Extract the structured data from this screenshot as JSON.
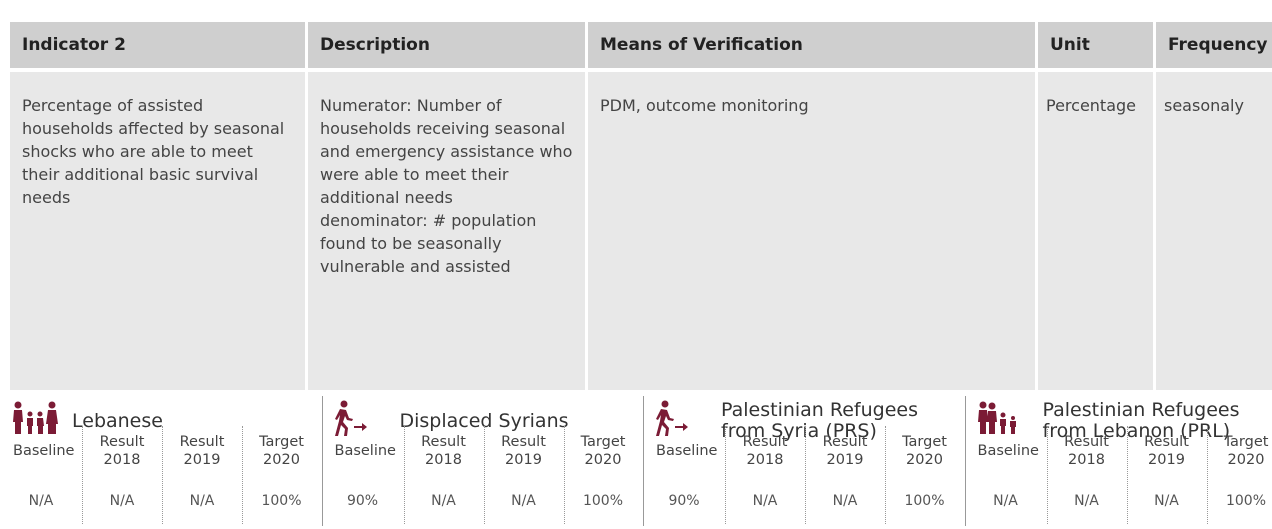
{
  "header": {
    "columns": [
      "Indicator 2",
      "Description",
      "Means of Verification",
      "Unit",
      "Frequency"
    ]
  },
  "row": {
    "indicator": "Percentage of assisted households affected by seasonal shocks who are able to meet their additional basic survival needs",
    "description": [
      "Numerator: Number of households receiving seasonal and emergency assistance who were able to meet their additional needs",
      "denominator: # population found to be seasonally vulnerable and assisted"
    ],
    "verification": "PDM, outcome monitoring",
    "unit": "Percentage",
    "frequency": "seasonaly"
  },
  "groups": [
    {
      "name": "Lebanese",
      "columns": [
        "Baseline",
        "Result 2018",
        "Result 2019",
        "Target 2020"
      ],
      "values": [
        "N/A",
        "N/A",
        "N/A",
        "100%"
      ]
    },
    {
      "name": "Displaced Syrians",
      "columns": [
        "Baseline",
        "Result 2018",
        "Result 2019",
        "Target 2020"
      ],
      "values": [
        "90%",
        "N/A",
        "N/A",
        "100%"
      ]
    },
    {
      "name": "Palestinian Refugees from Syria (PRS)",
      "columns": [
        "Baseline",
        "Result 2018",
        "Result 2019",
        "Target 2020"
      ],
      "values": [
        "90%",
        "N/A",
        "N/A",
        "100%"
      ]
    },
    {
      "name": "Palestinian Refugees from Lebanon (PRL)",
      "columns": [
        "Baseline",
        "Result 2018",
        "Result 2019",
        "Target 2020"
      ],
      "values": [
        "N/A",
        "N/A",
        "N/A",
        "100%"
      ]
    }
  ]
}
